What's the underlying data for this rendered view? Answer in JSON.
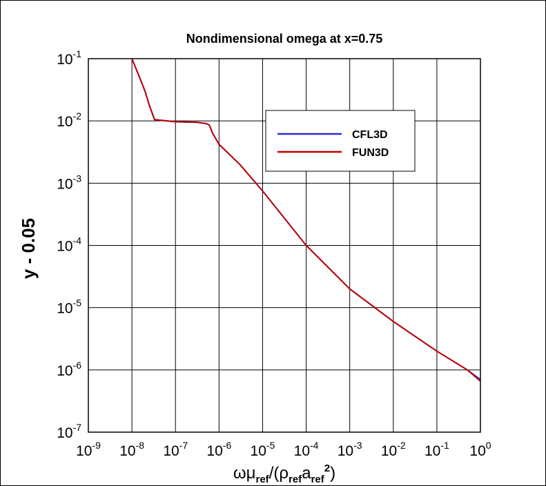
{
  "chart_data": {
    "type": "line",
    "title": "Nondimensional omega at x=0.75",
    "x_label": "ωμref/(ρrefaref2)",
    "y_label": "y - 0.05",
    "x_scale": "log",
    "y_scale": "log",
    "grid": true,
    "legend_position": "upper right",
    "x": [
      1e-08,
      1.5e-08,
      2e-08,
      2.5e-08,
      3.3e-08,
      1e-07,
      3e-07,
      5e-07,
      6e-07,
      7e-07,
      1e-06,
      3e-06,
      1e-05,
      0.0001,
      0.001,
      0.01,
      0.1,
      0.5,
      1
    ],
    "series": [
      {
        "name": "CFL3D",
        "color": "#2b2bd6",
        "values": [
          0.1,
          0.05,
          0.03,
          0.018,
          0.0105,
          0.0097,
          0.0095,
          0.0091,
          0.0086,
          0.0065,
          0.0042,
          0.002,
          0.00075,
          0.0001,
          2e-05,
          6e-06,
          2e-06,
          1e-06,
          7e-07
        ]
      },
      {
        "name": "FUN3D",
        "color": "#c00000",
        "values": [
          0.1,
          0.05,
          0.03,
          0.018,
          0.0105,
          0.0097,
          0.0095,
          0.0091,
          0.0086,
          0.0065,
          0.0042,
          0.002,
          0.00075,
          0.0001,
          2e-05,
          6e-06,
          2e-06,
          1e-06,
          6.6e-07
        ]
      }
    ],
    "xlim": [
      1e-09,
      1
    ],
    "ylim": [
      1e-07,
      0.1
    ],
    "xticks": [
      {
        "value": 1e-09,
        "label": "10-9"
      },
      {
        "value": 1e-08,
        "label": "10-8"
      },
      {
        "value": 1e-07,
        "label": "10-7"
      },
      {
        "value": 1e-06,
        "label": "10-6"
      },
      {
        "value": 1e-05,
        "label": "10-5"
      },
      {
        "value": 0.0001,
        "label": "10-4"
      },
      {
        "value": 0.001,
        "label": "10-3"
      },
      {
        "value": 0.01,
        "label": "10-2"
      },
      {
        "value": 0.1,
        "label": "10-1"
      },
      {
        "value": 1,
        "label": "100"
      }
    ],
    "yticks": [
      {
        "value": 1e-07,
        "label": "10-7"
      },
      {
        "value": 1e-06,
        "label": "10-6"
      },
      {
        "value": 1e-05,
        "label": "10-5"
      },
      {
        "value": 0.0001,
        "label": "10-4"
      },
      {
        "value": 0.001,
        "label": "10-3"
      },
      {
        "value": 0.01,
        "label": "10-2"
      },
      {
        "value": 0.1,
        "label": "10-1"
      }
    ]
  }
}
